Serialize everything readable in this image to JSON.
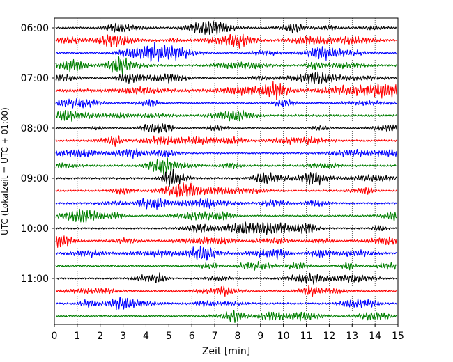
{
  "chart_data": {
    "type": "line",
    "title": "",
    "xlabel": "Zeit  [min]",
    "ylabel": "UTC (Lokalzeit = UTC + 01:00)",
    "xlim": [
      0,
      15
    ],
    "x_ticks": [
      "0",
      "1",
      "2",
      "3",
      "4",
      "5",
      "6",
      "7",
      "8",
      "9",
      "10",
      "11",
      "12",
      "13",
      "14",
      "15"
    ],
    "y_tick_labels": [
      "06:00",
      "07:00",
      "08:00",
      "09:00",
      "10:00",
      "11:00"
    ],
    "grid": "vertical dotted at each minute",
    "trace_interval_minutes": 15,
    "colors": [
      "#000000",
      "#ff0000",
      "#0000ff",
      "#007f00"
    ],
    "traces": [
      {
        "start": "06:00",
        "color": "#000000",
        "amplitude": 1.0
      },
      {
        "start": "06:15",
        "color": "#ff0000",
        "amplitude": 1.1
      },
      {
        "start": "06:30",
        "color": "#0000ff",
        "amplitude": 1.0
      },
      {
        "start": "06:45",
        "color": "#007f00",
        "amplitude": 1.0
      },
      {
        "start": "07:00",
        "color": "#000000",
        "amplitude": 1.0
      },
      {
        "start": "07:15",
        "color": "#ff0000",
        "amplitude": 1.6
      },
      {
        "start": "07:30",
        "color": "#0000ff",
        "amplitude": 1.0
      },
      {
        "start": "07:45",
        "color": "#007f00",
        "amplitude": 1.1
      },
      {
        "start": "08:00",
        "color": "#000000",
        "amplitude": 0.9
      },
      {
        "start": "08:15",
        "color": "#ff0000",
        "amplitude": 1.0
      },
      {
        "start": "08:30",
        "color": "#0000ff",
        "amplitude": 0.9
      },
      {
        "start": "08:45",
        "color": "#007f00",
        "amplitude": 1.0
      },
      {
        "start": "09:00",
        "color": "#000000",
        "amplitude": 1.0
      },
      {
        "start": "09:15",
        "color": "#ff0000",
        "amplitude": 0.9
      },
      {
        "start": "09:30",
        "color": "#0000ff",
        "amplitude": 0.9
      },
      {
        "start": "09:45",
        "color": "#007f00",
        "amplitude": 0.9
      },
      {
        "start": "10:00",
        "color": "#000000",
        "amplitude": 0.9
      },
      {
        "start": "10:15",
        "color": "#ff0000",
        "amplitude": 1.0
      },
      {
        "start": "10:30",
        "color": "#0000ff",
        "amplitude": 0.9
      },
      {
        "start": "10:45",
        "color": "#007f00",
        "amplitude": 1.0
      },
      {
        "start": "11:00",
        "color": "#000000",
        "amplitude": 0.9
      },
      {
        "start": "11:15",
        "color": "#ff0000",
        "amplitude": 1.2
      },
      {
        "start": "11:30",
        "color": "#0000ff",
        "amplitude": 1.0
      },
      {
        "start": "11:45",
        "color": "#007f00",
        "amplitude": 1.1
      }
    ]
  }
}
